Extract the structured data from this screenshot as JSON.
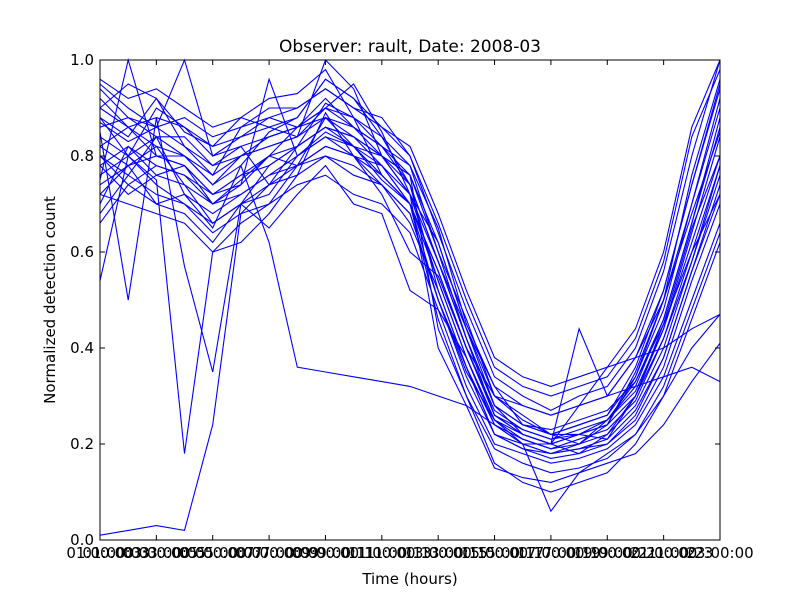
{
  "chart_data": {
    "type": "line",
    "title": "Observer: rault, Date: 2008-03",
    "xlabel": "Time (hours)",
    "ylabel": "Normalized detection count",
    "color": "#0000ff",
    "xlim": [
      1,
      23
    ],
    "ylim": [
      0.0,
      1.0
    ],
    "grid": false,
    "legend": "none",
    "xticks": [
      {
        "value": 1,
        "label": "01:00:00"
      },
      {
        "value": 3,
        "label": "03:00:00"
      },
      {
        "value": 5,
        "label": "05:00:00"
      },
      {
        "value": 7,
        "label": "07:00:00"
      },
      {
        "value": 9,
        "label": "09:00:00"
      },
      {
        "value": 11,
        "label": "11:00:00"
      },
      {
        "value": 13,
        "label": "13:00:00"
      },
      {
        "value": 15,
        "label": "15:00:00"
      },
      {
        "value": 17,
        "label": "17:00:00"
      },
      {
        "value": 19,
        "label": "19:00:00"
      },
      {
        "value": 21,
        "label": "21:00:00"
      },
      {
        "value": 23,
        "label": "23:00:00"
      }
    ],
    "xtick_overlays": [
      "01:00:03",
      "03:00:05",
      "05:00:07",
      "07:00:09",
      "09:00:11",
      "11:00:13",
      "13:00:15",
      "15:00:17",
      "17:00:19",
      "19:00:21",
      "21:00:23"
    ],
    "yticks": [
      {
        "value": 0.0,
        "label": "0.0"
      },
      {
        "value": 0.2,
        "label": "0.2"
      },
      {
        "value": 0.4,
        "label": "0.4"
      },
      {
        "value": 0.6,
        "label": "0.6"
      },
      {
        "value": 0.8,
        "label": "0.8"
      },
      {
        "value": 1.0,
        "label": "1.0"
      }
    ],
    "x": [
      1,
      2,
      3,
      4,
      5,
      6,
      7,
      8,
      9,
      10,
      11,
      12,
      13,
      14,
      15,
      16,
      17,
      18,
      19,
      20,
      21,
      22,
      23
    ],
    "series": [
      {
        "values": [
          0.01,
          0.02,
          0.03,
          0.02,
          0.24,
          0.68,
          0.7,
          0.78,
          0.88,
          0.82,
          0.75,
          0.7,
          0.5,
          0.35,
          0.25,
          0.22,
          0.2,
          0.22,
          0.21,
          0.3,
          0.45,
          0.65,
          0.8
        ]
      },
      {
        "values": [
          0.54,
          0.8,
          0.75,
          0.18,
          0.6,
          0.62,
          0.68,
          0.76,
          0.89,
          0.8,
          0.72,
          0.6,
          0.55,
          0.4,
          0.3,
          0.25,
          0.22,
          0.22,
          0.24,
          0.35,
          0.5,
          0.68,
          0.85
        ]
      },
      {
        "values": [
          0.85,
          0.5,
          0.88,
          0.57,
          0.35,
          0.7,
          0.65,
          0.72,
          0.78,
          0.7,
          0.68,
          0.52,
          0.48,
          0.38,
          0.25,
          0.2,
          0.18,
          0.2,
          0.24,
          0.34,
          0.48,
          0.7,
          0.9
        ]
      },
      {
        "values": [
          0.9,
          0.95,
          0.92,
          0.85,
          0.82,
          0.88,
          0.92,
          0.93,
          0.98,
          0.88,
          0.82,
          0.78,
          0.65,
          0.45,
          0.32,
          0.24,
          0.22,
          0.24,
          0.26,
          0.36,
          0.52,
          0.74,
          0.95
        ]
      },
      {
        "values": [
          0.75,
          1.0,
          0.8,
          0.78,
          0.7,
          0.75,
          0.8,
          0.86,
          0.9,
          0.95,
          0.85,
          0.72,
          0.62,
          0.44,
          0.3,
          0.26,
          0.22,
          0.2,
          0.25,
          0.33,
          0.45,
          0.6,
          0.72
        ]
      },
      {
        "values": [
          0.8,
          0.76,
          0.84,
          0.72,
          0.65,
          0.78,
          0.85,
          0.88,
          0.96,
          0.92,
          0.84,
          0.74,
          0.58,
          0.42,
          0.28,
          0.22,
          0.2,
          0.18,
          0.22,
          0.3,
          0.44,
          0.64,
          0.84
        ]
      },
      {
        "values": [
          0.95,
          0.9,
          0.86,
          1.0,
          0.8,
          0.82,
          0.74,
          0.82,
          0.91,
          0.88,
          0.76,
          0.7,
          0.56,
          0.4,
          0.26,
          0.23,
          0.21,
          0.22,
          0.25,
          0.32,
          0.46,
          0.66,
          0.88
        ]
      },
      {
        "values": [
          0.7,
          0.82,
          0.78,
          0.76,
          0.72,
          0.74,
          0.96,
          0.8,
          0.85,
          0.82,
          0.8,
          0.76,
          0.6,
          0.46,
          0.3,
          0.28,
          0.26,
          0.28,
          0.3,
          0.38,
          0.5,
          0.7,
          0.92
        ]
      },
      {
        "values": [
          0.88,
          0.84,
          0.92,
          0.82,
          0.76,
          0.86,
          0.9,
          0.9,
          0.94,
          0.9,
          0.88,
          0.8,
          0.64,
          0.48,
          0.34,
          0.3,
          0.27,
          0.3,
          0.32,
          0.4,
          0.56,
          0.8,
          1.0
        ]
      },
      {
        "values": [
          0.78,
          0.72,
          0.76,
          0.74,
          0.66,
          0.7,
          0.78,
          0.82,
          0.86,
          0.84,
          0.78,
          0.72,
          0.54,
          0.38,
          0.24,
          0.21,
          0.19,
          0.2,
          0.22,
          0.28,
          0.4,
          0.58,
          0.76
        ]
      },
      {
        "values": [
          0.92,
          0.86,
          0.82,
          0.8,
          0.74,
          0.8,
          0.82,
          0.84,
          1.0,
          0.94,
          0.8,
          0.74,
          0.52,
          0.36,
          0.22,
          0.2,
          0.18,
          0.19,
          0.2,
          0.26,
          0.38,
          0.56,
          0.74
        ]
      },
      {
        "values": [
          0.66,
          0.74,
          0.7,
          0.72,
          0.68,
          0.72,
          0.76,
          0.78,
          0.8,
          0.76,
          0.74,
          0.68,
          0.5,
          0.34,
          0.22,
          0.19,
          0.17,
          0.18,
          0.2,
          0.25,
          0.36,
          0.54,
          0.7
        ]
      },
      {
        "values": [
          0.84,
          0.8,
          0.9,
          0.86,
          0.82,
          0.84,
          0.88,
          0.86,
          0.92,
          0.86,
          0.82,
          0.76,
          0.62,
          0.44,
          0.28,
          0.24,
          0.22,
          0.24,
          0.26,
          0.34,
          0.5,
          0.76,
          0.96
        ]
      },
      {
        "values": [
          0.72,
          0.7,
          0.68,
          0.66,
          0.6,
          0.66,
          0.7,
          0.74,
          0.76,
          0.72,
          0.7,
          0.64,
          0.48,
          0.32,
          0.2,
          0.18,
          0.16,
          0.17,
          0.19,
          0.24,
          0.34,
          0.5,
          0.66
        ]
      },
      {
        "values": [
          0.96,
          0.92,
          0.94,
          0.9,
          0.86,
          0.88,
          0.86,
          0.88,
          0.96,
          0.92,
          0.86,
          0.8,
          0.66,
          0.5,
          0.36,
          0.32,
          0.3,
          0.32,
          0.34,
          0.42,
          0.58,
          0.84,
          0.98
        ]
      },
      {
        "values": [
          0.82,
          0.78,
          0.8,
          0.78,
          0.72,
          0.76,
          0.8,
          0.78,
          0.82,
          0.8,
          0.78,
          0.7,
          0.56,
          0.4,
          0.27,
          0.23,
          0.21,
          0.23,
          0.25,
          0.31,
          0.44,
          0.62,
          0.8
        ]
      },
      {
        "values": [
          0.86,
          0.88,
          0.84,
          0.84,
          0.78,
          0.8,
          0.84,
          0.86,
          0.88,
          0.86,
          0.8,
          0.76,
          0.44,
          0.3,
          0.16,
          0.12,
          0.1,
          0.12,
          0.14,
          0.2,
          0.3,
          0.46,
          0.62
        ]
      },
      {
        "values": [
          0.76,
          0.8,
          0.74,
          0.7,
          0.64,
          0.68,
          0.74,
          0.76,
          0.8,
          0.78,
          0.74,
          0.66,
          0.52,
          0.36,
          0.24,
          0.2,
          0.06,
          0.14,
          0.18,
          0.22,
          0.3,
          0.4,
          0.47
        ]
      },
      {
        "values": [
          0.9,
          0.86,
          0.88,
          0.86,
          0.8,
          0.84,
          0.86,
          0.84,
          0.9,
          0.88,
          0.84,
          0.78,
          0.6,
          0.42,
          0.26,
          0.22,
          0.2,
          0.22,
          0.24,
          0.3,
          0.42,
          0.58,
          0.78
        ]
      },
      {
        "values": [
          0.68,
          0.76,
          0.72,
          0.7,
          0.66,
          0.7,
          0.72,
          0.8,
          0.84,
          0.8,
          0.76,
          0.7,
          0.46,
          0.3,
          0.19,
          0.16,
          0.14,
          0.15,
          0.17,
          0.22,
          0.32,
          0.48,
          0.64
        ]
      },
      {
        "values": [
          0.94,
          0.88,
          0.86,
          0.88,
          0.84,
          0.86,
          0.88,
          0.9,
          0.94,
          0.9,
          0.86,
          0.82,
          0.68,
          0.52,
          0.38,
          0.34,
          0.32,
          0.34,
          0.36,
          0.44,
          0.6,
          0.86,
          1.0
        ]
      },
      {
        "values": [
          0.8,
          0.74,
          0.78,
          0.76,
          0.7,
          0.72,
          0.76,
          0.8,
          0.84,
          0.82,
          0.76,
          0.7,
          0.54,
          0.38,
          0.25,
          0.21,
          0.19,
          0.21,
          0.23,
          0.29,
          0.42,
          0.6,
          0.78
        ]
      },
      {
        "values": [
          0.87,
          0.83,
          0.86,
          0.82,
          0.78,
          0.82,
          0.84,
          0.86,
          0.9,
          0.86,
          0.82,
          0.74,
          0.58,
          0.42,
          0.28,
          0.24,
          0.23,
          0.25,
          0.27,
          0.33,
          0.46,
          0.66,
          0.86
        ]
      },
      {
        "values": [
          0.74,
          0.78,
          0.7,
          0.68,
          0.62,
          0.7,
          0.74,
          0.78,
          0.82,
          0.8,
          0.74,
          0.68,
          0.5,
          0.36,
          0.22,
          0.19,
          0.18,
          0.19,
          0.21,
          0.27,
          0.38,
          0.56,
          0.72
        ]
      },
      {
        "values": [
          0.82,
          0.86,
          0.8,
          0.8,
          0.74,
          0.78,
          0.62,
          0.36,
          0.35,
          0.34,
          0.33,
          0.32,
          0.3,
          0.28,
          0.24,
          0.2,
          0.2,
          0.28,
          0.36,
          0.38,
          0.4,
          0.44,
          0.47
        ]
      },
      {
        "values": [
          0.78,
          0.82,
          0.76,
          0.78,
          0.72,
          0.76,
          0.78,
          0.82,
          0.86,
          0.84,
          0.8,
          0.72,
          0.4,
          0.28,
          0.15,
          0.13,
          0.12,
          0.14,
          0.16,
          0.18,
          0.24,
          0.33,
          0.41
        ]
      },
      {
        "values": [
          0.88,
          0.8,
          0.84,
          0.8,
          0.76,
          0.8,
          0.82,
          0.84,
          0.88,
          0.84,
          0.8,
          0.72,
          0.58,
          0.44,
          0.32,
          0.28,
          0.26,
          0.28,
          0.3,
          0.38,
          0.52,
          0.74,
          0.94
        ]
      },
      {
        "values": [
          0.72,
          0.78,
          0.82,
          0.74,
          0.7,
          0.74,
          0.8,
          0.82,
          0.86,
          0.82,
          0.78,
          0.7,
          0.56,
          0.4,
          0.26,
          0.22,
          0.2,
          0.44,
          0.3,
          0.32,
          0.34,
          0.36,
          0.33
        ]
      }
    ]
  }
}
